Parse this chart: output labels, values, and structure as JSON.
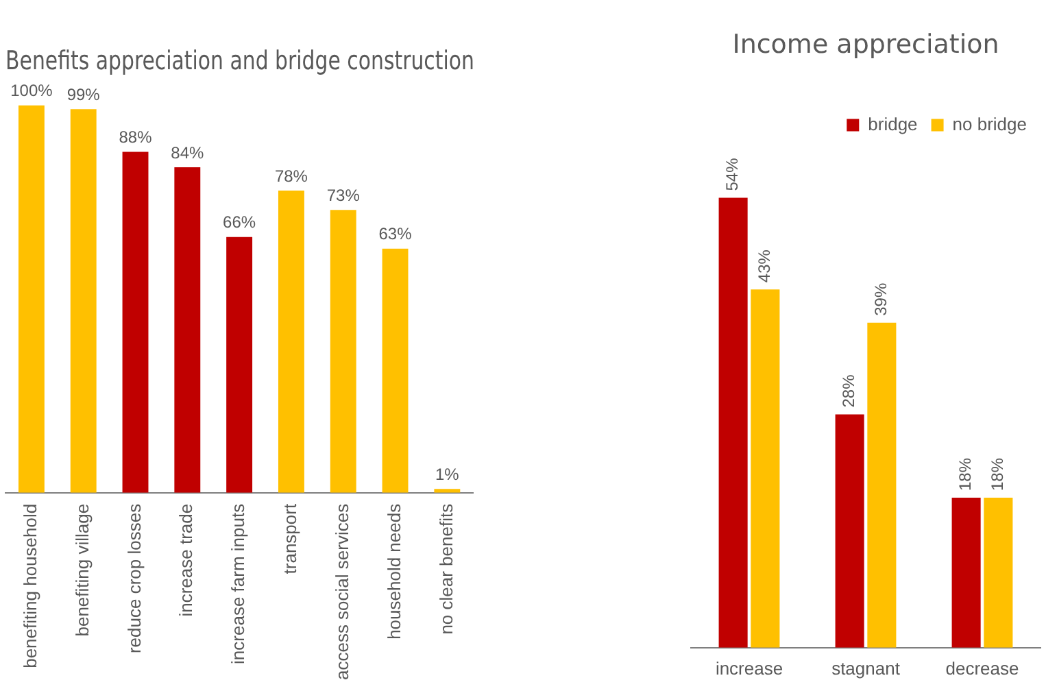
{
  "chart_data": [
    {
      "type": "bar",
      "title": "Benefits appreciation and bridge construction",
      "categories": [
        "benefiting household",
        "benefiting village",
        "reduce crop losses",
        "increase trade",
        "increase farm inputs",
        "transport",
        "access social services",
        "household needs",
        "no clear benefits"
      ],
      "values": [
        100,
        99,
        88,
        84,
        66,
        78,
        73,
        63,
        1
      ],
      "colors": [
        "#ffc000",
        "#ffc000",
        "#c00000",
        "#c00000",
        "#c00000",
        "#ffc000",
        "#ffc000",
        "#ffc000",
        "#ffc000"
      ],
      "value_labels": [
        "100%",
        "99%",
        "88%",
        "84%",
        "66%",
        "78%",
        "73%",
        "63%",
        "1%"
      ],
      "grid": false,
      "legend": false,
      "tick_labels": "x"
    },
    {
      "type": "bar",
      "title": "Income appreciation",
      "categories": [
        "increase",
        "stagnant",
        "decrease"
      ],
      "series": [
        {
          "name": "bridge",
          "color": "#c00000",
          "values": [
            54,
            28,
            18
          ],
          "value_labels": [
            "54%",
            "28%",
            "18%"
          ]
        },
        {
          "name": "no bridge",
          "color": "#ffc000",
          "values": [
            43,
            39,
            18
          ],
          "value_labels": [
            "43%",
            "39%",
            "18%"
          ]
        }
      ],
      "grid": false,
      "legend": "top right",
      "tick_labels": "x"
    }
  ]
}
